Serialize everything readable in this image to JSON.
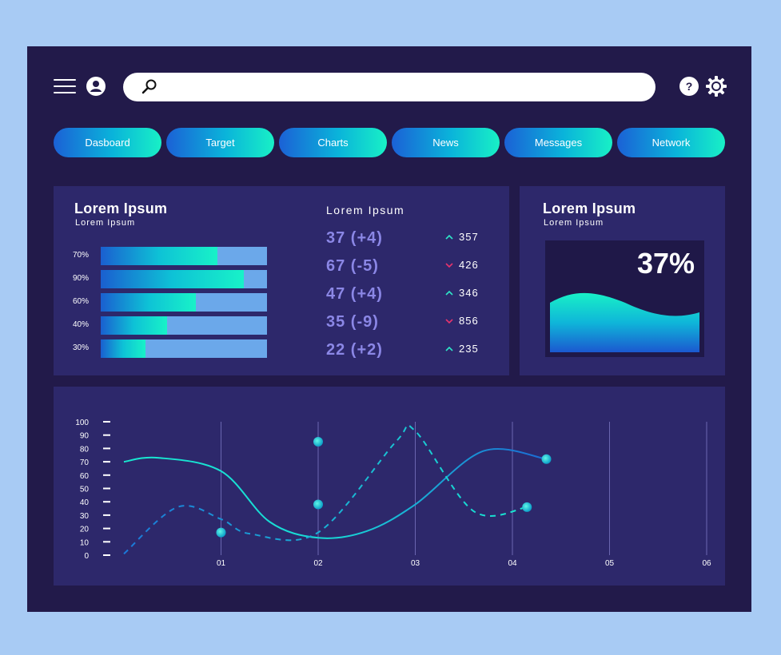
{
  "header": {
    "search": {
      "placeholder": "",
      "value": ""
    },
    "help_label": "?"
  },
  "tabs": [
    {
      "label": "Dasboard"
    },
    {
      "label": "Target"
    },
    {
      "label": "Charts"
    },
    {
      "label": "News"
    },
    {
      "label": "Messages"
    },
    {
      "label": "Network"
    }
  ],
  "bars_panel": {
    "title": "Lorem Ipsum",
    "subtitle": "Lorem Ipsum",
    "bars": [
      {
        "label": "70%",
        "value": 0.7
      },
      {
        "label": "90%",
        "value": 0.86
      },
      {
        "label": "60%",
        "value": 0.57
      },
      {
        "label": "40%",
        "value": 0.4
      },
      {
        "label": "30%",
        "value": 0.27
      }
    ]
  },
  "stats": {
    "title": "Lorem Ipsum",
    "rows": [
      {
        "value": "37 (+4)",
        "direction": "up",
        "count": "357"
      },
      {
        "value": "67 (-5)",
        "direction": "down",
        "count": "426"
      },
      {
        "value": "47 (+4)",
        "direction": "up",
        "count": "346"
      },
      {
        "value": "35 (-9)",
        "direction": "down",
        "count": "856"
      },
      {
        "value": "22 (+2)",
        "direction": "up",
        "count": "235"
      }
    ]
  },
  "gauge_panel": {
    "title": "Lorem Ipsum",
    "subtitle": "Lorem Ipsum",
    "value": "37%"
  },
  "colors": {
    "background": "#a8cbf4",
    "frame": "#221a4a",
    "panel": "#2d286b",
    "accent_teal": "#18f0c6",
    "accent_blue": "#1b61d6",
    "up": "#2ee6c8",
    "down": "#e8336d"
  },
  "chart_data": {
    "type": "line",
    "x_ticks": [
      "01",
      "02",
      "03",
      "04",
      "05",
      "06"
    ],
    "y_ticks": [
      "0",
      "10",
      "20",
      "30",
      "40",
      "50",
      "60",
      "70",
      "80",
      "90",
      "100"
    ],
    "ylim": [
      0,
      100
    ],
    "series": [
      {
        "style": "solid",
        "x": [
          0.0,
          0.35,
          1.0,
          1.5,
          2.0,
          2.5,
          3.0,
          3.7,
          4.35
        ],
        "y": [
          70,
          73,
          63,
          25,
          13,
          18,
          38,
          78,
          72
        ]
      },
      {
        "style": "dashed",
        "x": [
          0.0,
          0.55,
          1.0,
          1.3,
          2.0,
          2.8,
          3.0,
          3.6,
          4.15
        ],
        "y": [
          1,
          36,
          27,
          16,
          17,
          85,
          93,
          33,
          36
        ]
      }
    ],
    "markers": [
      {
        "x": 1.0,
        "y": 17
      },
      {
        "x": 2.0,
        "y": 38
      },
      {
        "x": 2.0,
        "y": 85
      },
      {
        "x": 4.15,
        "y": 36
      },
      {
        "x": 4.35,
        "y": 72
      }
    ]
  }
}
